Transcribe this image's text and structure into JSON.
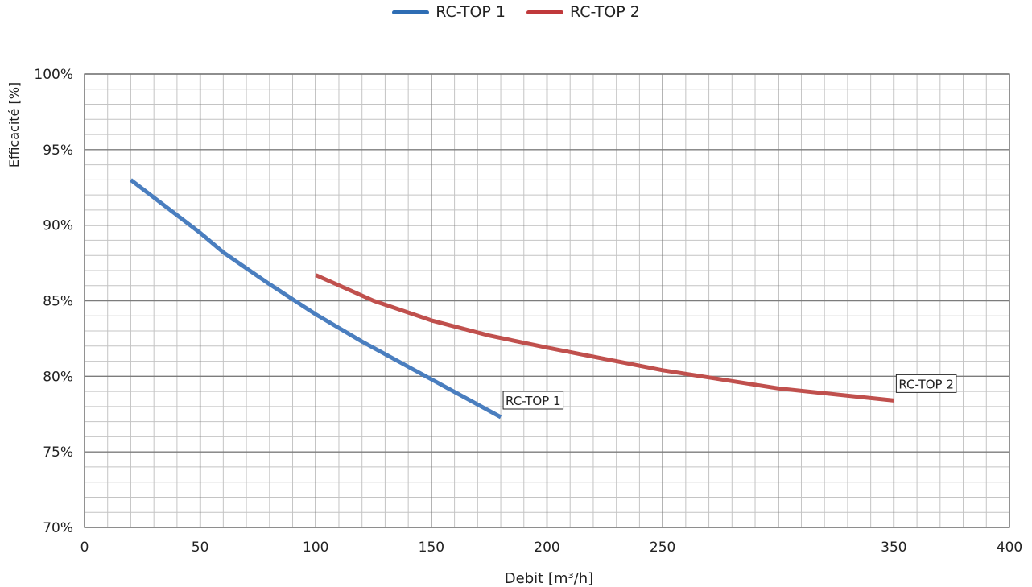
{
  "chart_data": {
    "type": "line",
    "xlabel": "Debit [m³/h]",
    "ylabel": "Efficacité [%]",
    "xlim": [
      0,
      400
    ],
    "ylim": [
      70,
      100
    ],
    "x_ticks": [
      "0",
      "50",
      "100",
      "150",
      "200",
      "250",
      "350",
      "400"
    ],
    "x_tick_values": [
      0,
      50,
      100,
      150,
      200,
      250,
      350,
      400
    ],
    "y_ticks": [
      "70%",
      "75%",
      "80%",
      "85%",
      "90%",
      "95%",
      "100%"
    ],
    "y_tick_values": [
      70,
      75,
      80,
      85,
      90,
      95,
      100
    ],
    "grid": true,
    "legend_position": "top-center",
    "series": [
      {
        "name": "RC-TOP 1",
        "color": "#4a7ebf",
        "label": "RC-TOP 1",
        "x": [
          20,
          50,
          60,
          80,
          100,
          120,
          150,
          180
        ],
        "y": [
          93.0,
          89.5,
          88.2,
          86.1,
          84.1,
          82.3,
          79.8,
          77.3
        ]
      },
      {
        "name": "RC-TOP 2",
        "color": "#c0504d",
        "label": "RC-TOP 2",
        "x": [
          100,
          125,
          150,
          175,
          200,
          250,
          300,
          350
        ],
        "y": [
          86.7,
          85.0,
          83.7,
          82.7,
          81.9,
          80.4,
          79.2,
          78.4
        ]
      }
    ]
  }
}
